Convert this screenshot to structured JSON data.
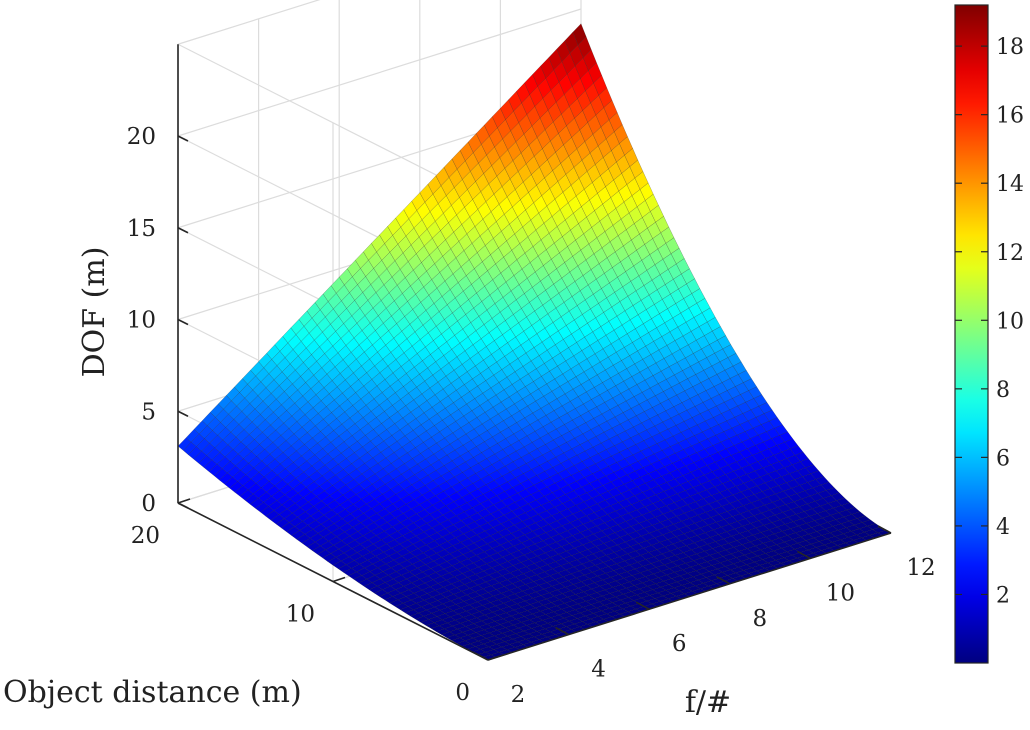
{
  "chart_data": {
    "type": "surface",
    "xlabel": "f/#",
    "ylabel": "Object distance (m)",
    "zlabel": "DOF (m)",
    "x_ticks": [
      "2",
      "4",
      "6",
      "8",
      "10",
      "12"
    ],
    "y_ticks": [
      "0",
      "10",
      "20"
    ],
    "z_ticks": [
      "0",
      "5",
      "10",
      "15",
      "20"
    ],
    "xlim": [
      2,
      12
    ],
    "ylim": [
      0,
      20
    ],
    "zlim": [
      0,
      20
    ],
    "grid": true,
    "colormap": "jet",
    "colorbar": {
      "position": "right",
      "ticks": [
        "2",
        "4",
        "6",
        "8",
        "10",
        "12",
        "14",
        "16",
        "18"
      ],
      "range": [
        0,
        19.2
      ]
    },
    "corner_values": [
      {
        "x": 2,
        "y": 0,
        "z": 0
      },
      {
        "x": 12,
        "y": 0,
        "z": 0
      },
      {
        "x": 2,
        "y": 20,
        "z": 3.1
      },
      {
        "x": 12,
        "y": 20,
        "z": 19.2
      }
    ],
    "edge_samples": {
      "y_20_along_x": [
        {
          "x": 2,
          "z": 3.1
        },
        {
          "x": 4,
          "z": 6.2
        },
        {
          "x": 6,
          "z": 9.4
        },
        {
          "x": 8,
          "z": 12.6
        },
        {
          "x": 10,
          "z": 15.9
        },
        {
          "x": 12,
          "z": 19.2
        }
      ]
    }
  }
}
